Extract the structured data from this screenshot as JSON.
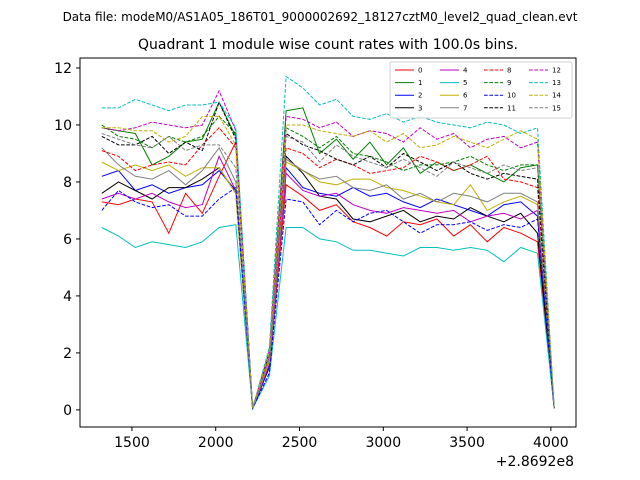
{
  "chart_data": {
    "type": "line",
    "suptitle": "Data file: modeM0/AS1A05_186T01_9000002692_18127cztM0_level2_quad_clean.evt",
    "title": "Quadrant 1 module wise count rates with 100.0s bins.",
    "xlabel": "",
    "ylabel": "",
    "x_offset_label": "+2.8692e8",
    "xlim": [
      1190,
      4150
    ],
    "ylim": [
      -0.6,
      12.35
    ],
    "xticks": [
      1500,
      2000,
      2500,
      3000,
      3500,
      4000
    ],
    "yticks": [
      0,
      2,
      4,
      6,
      8,
      10,
      12
    ],
    "legend_position": "top-right",
    "x": [
      1320,
      1420,
      1520,
      1620,
      1720,
      1820,
      1920,
      2020,
      2120,
      2220,
      2320,
      2420,
      2520,
      2620,
      2720,
      2820,
      2920,
      3020,
      3120,
      3220,
      3320,
      3420,
      3520,
      3620,
      3720,
      3820,
      3920,
      4020
    ],
    "series": [
      {
        "name": "0",
        "color": "#ff0000",
        "dash": "solid",
        "values": [
          7.3,
          7.2,
          7.4,
          7.3,
          6.2,
          7.6,
          6.9,
          8.2,
          9.4,
          0.05,
          1.5,
          7.9,
          7.5,
          7.0,
          7.2,
          6.6,
          6.4,
          6.1,
          6.6,
          6.5,
          6.7,
          6.1,
          6.5,
          5.9,
          6.4,
          6.2,
          5.9,
          0.05
        ]
      },
      {
        "name": "1",
        "color": "#008000",
        "dash": "solid",
        "values": [
          9.9,
          9.8,
          9.7,
          8.6,
          8.9,
          9.4,
          9.5,
          10.8,
          9.6,
          0.05,
          2.0,
          10.5,
          10.6,
          9.0,
          9.5,
          8.8,
          9.4,
          8.6,
          9.2,
          8.3,
          8.7,
          8.4,
          8.6,
          8.3,
          8.0,
          8.5,
          8.6,
          0.05
        ]
      },
      {
        "name": "2",
        "color": "#0000ff",
        "dash": "solid",
        "values": [
          8.2,
          8.4,
          7.7,
          7.9,
          7.6,
          7.8,
          7.9,
          8.4,
          7.7,
          0.05,
          1.5,
          8.5,
          7.8,
          7.6,
          7.5,
          7.8,
          7.5,
          7.6,
          7.3,
          7.1,
          7.4,
          7.2,
          7.0,
          6.8,
          7.2,
          7.3,
          6.8,
          0.05
        ]
      },
      {
        "name": "3",
        "color": "#000000",
        "dash": "solid",
        "values": [
          7.6,
          8.0,
          7.7,
          7.4,
          7.8,
          7.8,
          8.1,
          8.5,
          7.6,
          0.05,
          1.6,
          8.9,
          8.3,
          7.5,
          7.4,
          6.7,
          6.6,
          6.8,
          7.0,
          6.6,
          6.8,
          6.7,
          7.1,
          6.8,
          6.6,
          6.9,
          6.2,
          0.05
        ]
      },
      {
        "name": "4",
        "color": "#c000c0",
        "dash": "solid",
        "values": [
          7.4,
          7.6,
          7.4,
          7.6,
          7.3,
          7.1,
          7.2,
          8.9,
          7.7,
          0.05,
          1.6,
          8.3,
          7.7,
          7.5,
          7.6,
          7.2,
          7.0,
          6.9,
          7.1,
          7.0,
          6.9,
          7.0,
          6.6,
          6.8,
          6.9,
          6.7,
          7.0,
          0.05
        ]
      },
      {
        "name": "5",
        "color": "#00c0c0",
        "dash": "solid",
        "values": [
          6.4,
          6.1,
          5.7,
          5.9,
          5.8,
          5.7,
          5.9,
          6.4,
          6.5,
          0.05,
          1.2,
          6.4,
          6.4,
          6.0,
          5.9,
          5.6,
          5.6,
          5.5,
          5.4,
          5.7,
          5.7,
          5.6,
          5.7,
          5.6,
          5.2,
          5.7,
          5.5,
          0.05
        ]
      },
      {
        "name": "6",
        "color": "#c0b000",
        "dash": "solid",
        "values": [
          8.7,
          8.4,
          8.6,
          8.4,
          8.6,
          8.2,
          8.5,
          8.5,
          7.6,
          0.05,
          1.7,
          8.7,
          8.4,
          8.0,
          7.9,
          8.1,
          8.1,
          7.8,
          7.7,
          7.5,
          7.3,
          7.2,
          7.9,
          7.0,
          7.3,
          7.5,
          7.2,
          0.05
        ]
      },
      {
        "name": "7",
        "color": "#808080",
        "dash": "solid",
        "values": [
          9.2,
          8.6,
          8.2,
          8.1,
          8.4,
          7.9,
          8.4,
          9.2,
          8.0,
          0.05,
          1.8,
          8.8,
          8.4,
          8.1,
          8.2,
          7.8,
          7.7,
          7.9,
          7.4,
          7.6,
          7.3,
          7.6,
          7.5,
          7.3,
          7.6,
          7.6,
          7.3,
          0.05
        ]
      },
      {
        "name": "8",
        "color": "#ff0000",
        "dash": "dashed",
        "values": [
          9.1,
          8.9,
          8.4,
          8.6,
          8.7,
          8.6,
          9.3,
          9.9,
          9.2,
          0.05,
          1.9,
          9.2,
          9.0,
          8.5,
          8.8,
          8.6,
          8.3,
          8.4,
          8.5,
          8.9,
          8.7,
          8.4,
          8.6,
          8.9,
          8.1,
          8.0,
          7.8,
          0.05
        ]
      },
      {
        "name": "9",
        "color": "#008000",
        "dash": "dashed",
        "values": [
          10.0,
          9.6,
          9.5,
          9.2,
          9.6,
          9.4,
          9.6,
          10.3,
          9.7,
          0.05,
          2.0,
          9.9,
          9.6,
          9.2,
          9.6,
          9.0,
          8.9,
          8.7,
          8.4,
          8.6,
          8.6,
          8.7,
          8.9,
          8.6,
          8.4,
          8.6,
          8.6,
          0.05
        ]
      },
      {
        "name": "10",
        "color": "#0000ff",
        "dash": "dashed",
        "values": [
          7.0,
          7.7,
          7.3,
          7.1,
          7.2,
          6.8,
          6.8,
          7.4,
          7.8,
          0.05,
          1.3,
          7.4,
          7.3,
          6.5,
          7.0,
          6.6,
          6.9,
          7.0,
          6.6,
          6.2,
          6.5,
          6.5,
          6.6,
          6.3,
          6.5,
          6.4,
          6.7,
          0.05
        ]
      },
      {
        "name": "11",
        "color": "#000000",
        "dash": "dashed",
        "values": [
          9.6,
          9.3,
          9.3,
          9.6,
          9.0,
          9.4,
          9.1,
          10.8,
          9.5,
          0.05,
          2.0,
          9.7,
          9.3,
          9.1,
          8.8,
          8.6,
          8.9,
          8.5,
          9.0,
          8.7,
          8.4,
          8.7,
          8.3,
          8.1,
          8.3,
          8.2,
          8.1,
          0.05
        ]
      },
      {
        "name": "12",
        "color": "#c000c0",
        "dash": "dashed",
        "values": [
          9.9,
          9.8,
          9.9,
          10.1,
          10.0,
          9.9,
          10.0,
          11.2,
          9.8,
          0.05,
          2.1,
          10.3,
          10.2,
          9.9,
          10.1,
          9.6,
          9.8,
          9.7,
          9.4,
          9.9,
          9.5,
          9.7,
          9.2,
          9.5,
          9.6,
          9.2,
          9.4,
          0.05
        ]
      },
      {
        "name": "13",
        "color": "#00c0c0",
        "dash": "dashed",
        "values": [
          10.6,
          10.6,
          10.9,
          10.7,
          10.5,
          10.7,
          10.7,
          10.8,
          9.9,
          0.05,
          2.2,
          11.7,
          11.3,
          10.7,
          10.9,
          10.3,
          10.2,
          10.4,
          10.1,
          10.3,
          10.1,
          10.0,
          9.9,
          10.1,
          10.0,
          9.7,
          9.9,
          0.05
        ]
      },
      {
        "name": "14",
        "color": "#c0b000",
        "dash": "dashed",
        "values": [
          9.9,
          9.9,
          9.8,
          9.8,
          9.4,
          9.6,
          10.3,
          10.3,
          9.3,
          0.05,
          2.0,
          10.0,
          10.0,
          9.8,
          9.7,
          9.6,
          9.8,
          9.4,
          9.7,
          9.2,
          9.3,
          9.6,
          9.4,
          9.2,
          9.5,
          9.8,
          9.5,
          0.05
        ]
      },
      {
        "name": "15",
        "color": "#808080",
        "dash": "dashed",
        "values": [
          9.7,
          9.5,
          9.3,
          9.2,
          9.6,
          9.1,
          9.3,
          9.3,
          8.5,
          0.05,
          1.8,
          9.6,
          9.4,
          8.7,
          9.3,
          8.9,
          8.7,
          8.5,
          8.8,
          8.5,
          8.2,
          8.7,
          8.5,
          8.3,
          8.6,
          8.4,
          8.5,
          0.05
        ]
      }
    ]
  }
}
